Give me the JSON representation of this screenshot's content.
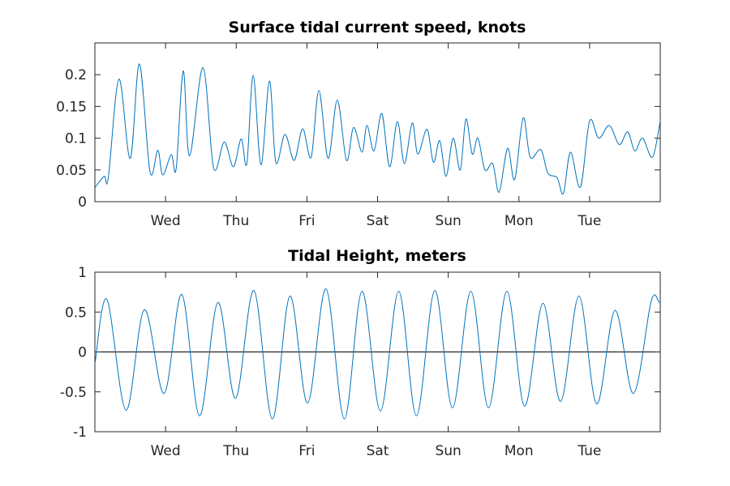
{
  "chart_data": [
    {
      "type": "line",
      "title": "Surface tidal current speed, knots",
      "xlabel": "",
      "ylabel": "",
      "ylim": [
        0,
        0.25
      ],
      "xlim": [
        0,
        8
      ],
      "yticks": [
        0,
        0.05,
        0.1,
        0.15,
        0.2
      ],
      "ytick_labels": [
        "0",
        "0.05",
        "0.1",
        "0.15",
        "0.2"
      ],
      "xticks": [
        1,
        2,
        3,
        4,
        5,
        6,
        7
      ],
      "xtick_labels": [
        "Wed",
        "Thu",
        "Fri",
        "Sat",
        "Sun",
        "Mon",
        "Tue"
      ],
      "grid": false,
      "color": "#0072BD",
      "series": [
        {
          "x": [
            0.0,
            0.13,
            0.19,
            0.34,
            0.5,
            0.63,
            0.78,
            0.89,
            0.96,
            1.08,
            1.15,
            1.25,
            1.34,
            1.53,
            1.68,
            1.83,
            1.96,
            2.07,
            2.15,
            2.24,
            2.35,
            2.47,
            2.56,
            2.69,
            2.82,
            2.94,
            3.06,
            3.17,
            3.3,
            3.43,
            3.56,
            3.66,
            3.78,
            3.85,
            3.95,
            4.06,
            4.17,
            4.28,
            4.38,
            4.49,
            4.57,
            4.7,
            4.79,
            4.88,
            4.97,
            5.07,
            5.17,
            5.25,
            5.34,
            5.42,
            5.52,
            5.63,
            5.72,
            5.84,
            5.94,
            6.06,
            6.16,
            6.31,
            6.41,
            6.54,
            6.63,
            6.73,
            6.87,
            7.0,
            7.13,
            7.28,
            7.42,
            7.54,
            7.64,
            7.75,
            7.89,
            8.0
          ],
          "y": [
            0.022,
            0.04,
            0.038,
            0.193,
            0.068,
            0.217,
            0.047,
            0.081,
            0.042,
            0.074,
            0.052,
            0.206,
            0.072,
            0.211,
            0.053,
            0.094,
            0.055,
            0.099,
            0.06,
            0.199,
            0.058,
            0.19,
            0.062,
            0.106,
            0.065,
            0.115,
            0.07,
            0.175,
            0.068,
            0.16,
            0.065,
            0.117,
            0.078,
            0.12,
            0.08,
            0.139,
            0.055,
            0.126,
            0.06,
            0.124,
            0.075,
            0.114,
            0.062,
            0.096,
            0.04,
            0.1,
            0.05,
            0.13,
            0.075,
            0.1,
            0.05,
            0.06,
            0.015,
            0.084,
            0.035,
            0.132,
            0.07,
            0.082,
            0.045,
            0.038,
            0.013,
            0.078,
            0.023,
            0.127,
            0.1,
            0.12,
            0.09,
            0.11,
            0.08,
            0.1,
            0.07,
            0.127
          ]
        }
      ]
    },
    {
      "type": "line",
      "title": "Tidal Height, meters",
      "xlabel": "",
      "ylabel": "",
      "ylim": [
        -1,
        1
      ],
      "xlim": [
        0,
        8
      ],
      "yticks": [
        -1,
        -0.5,
        0,
        0.5,
        1
      ],
      "ytick_labels": [
        "-1",
        "-0.5",
        "0",
        "0.5",
        "1"
      ],
      "xticks": [
        1,
        2,
        3,
        4,
        5,
        6,
        7
      ],
      "xtick_labels": [
        "Wed",
        "Thu",
        "Fri",
        "Sat",
        "Sun",
        "Mon",
        "Tue"
      ],
      "grid": false,
      "zero_line": true,
      "color": "#0072BD",
      "series": [
        {
          "x": [
            0.0,
            0.17,
            0.44,
            0.7,
            0.98,
            1.23,
            1.48,
            1.74,
            1.99,
            2.25,
            2.51,
            2.76,
            3.01,
            3.27,
            3.53,
            3.78,
            4.04,
            4.3,
            4.55,
            4.81,
            5.06,
            5.32,
            5.57,
            5.83,
            6.08,
            6.34,
            6.59,
            6.85,
            7.1,
            7.36,
            7.62,
            7.87,
            7.98,
            8.0
          ],
          "y": [
            -0.15,
            0.66,
            -0.73,
            0.53,
            -0.52,
            0.72,
            -0.8,
            0.62,
            -0.58,
            0.77,
            -0.84,
            0.7,
            -0.64,
            0.79,
            -0.84,
            0.76,
            -0.74,
            0.76,
            -0.8,
            0.77,
            -0.7,
            0.76,
            -0.7,
            0.76,
            -0.68,
            0.61,
            -0.62,
            0.7,
            -0.65,
            0.52,
            -0.52,
            0.63,
            0.63,
            0.6
          ]
        }
      ]
    }
  ]
}
